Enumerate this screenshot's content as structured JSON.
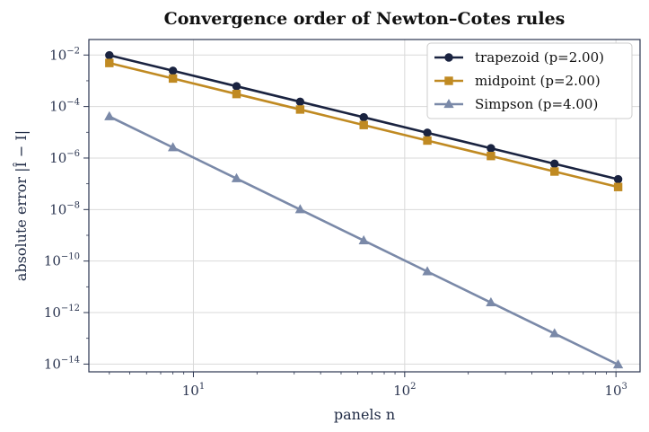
{
  "chart_data": {
    "type": "line",
    "title": "Convergence order of Newton–Cotes rules",
    "xlabel": "panels  n",
    "ylabel": "absolute error  |Î − I|",
    "xscale": "log",
    "yscale": "log",
    "xlim": [
      3.2,
      1300
    ],
    "ylim": [
      5e-15,
      0.04
    ],
    "x_ticks": [
      {
        "base": "10",
        "exp": "1"
      },
      {
        "base": "10",
        "exp": "2"
      },
      {
        "base": "10",
        "exp": "3"
      }
    ],
    "y_ticks": [
      {
        "base": "10",
        "exp": "−2"
      },
      {
        "base": "10",
        "exp": "−4"
      },
      {
        "base": "10",
        "exp": "−6"
      },
      {
        "base": "10",
        "exp": "−8"
      },
      {
        "base": "10",
        "exp": "−10"
      },
      {
        "base": "10",
        "exp": "−12"
      },
      {
        "base": "10",
        "exp": "−14"
      }
    ],
    "grid": true,
    "legend_position": "top-right",
    "x": [
      4,
      8,
      16,
      32,
      64,
      128,
      256,
      512,
      1024
    ],
    "series": [
      {
        "name": "trapezoid  (p=2.00)",
        "marker": "circle",
        "color": "#1a2340",
        "values": [
          0.0098,
          0.00245,
          0.000612,
          0.000153,
          3.83e-05,
          9.57e-06,
          2.39e-06,
          5.98e-07,
          1.5e-07
        ]
      },
      {
        "name": "midpoint  (p=2.00)",
        "marker": "square",
        "color": "#c08a22",
        "values": [
          0.0049,
          0.001225,
          0.000306,
          7.66e-05,
          1.91e-05,
          4.78e-06,
          1.2e-06,
          2.99e-07,
          7.5e-08
        ]
      },
      {
        "name": "Simpson  (p=4.00)",
        "marker": "triangle",
        "color": "#7a89a8",
        "values": [
          4.1e-05,
          2.56e-06,
          1.6e-07,
          1e-08,
          6.25e-10,
          3.9e-11,
          2.44e-12,
          1.53e-13,
          9.5e-15
        ]
      }
    ]
  }
}
